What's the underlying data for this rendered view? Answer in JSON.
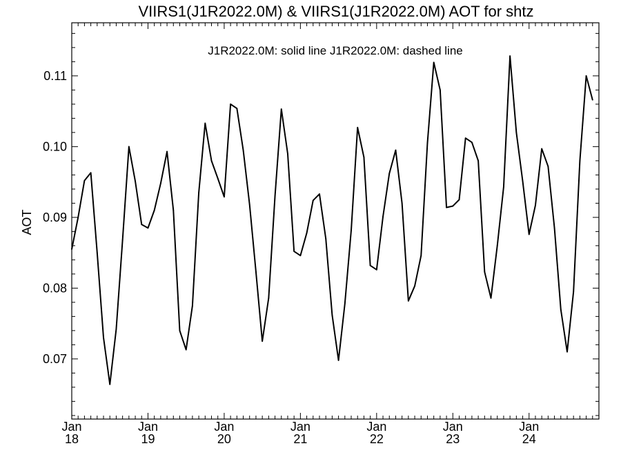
{
  "chart_data": {
    "type": "line",
    "title": "VIIRS1(J1R2022.0M) & VIIRS1(J1R2022.0M)  AOT for shtz",
    "annotation": "J1R2022.0M: solid line   J1R2022.0M: dashed line",
    "ylabel": "AOT",
    "xlabel": "",
    "ylim": [
      0.0615,
      0.1175
    ],
    "yticks": [
      0.07,
      0.08,
      0.09,
      0.1,
      0.11
    ],
    "ytick_labels": [
      "0.07",
      "0.08",
      "0.09",
      "0.10",
      "0.11"
    ],
    "xlim": [
      "2018-01",
      "2024-12"
    ],
    "xticks": [
      {
        "month": "Jan",
        "year": "18",
        "date": "2018-01"
      },
      {
        "month": "Jan",
        "year": "19",
        "date": "2019-01"
      },
      {
        "month": "Jan",
        "year": "20",
        "date": "2020-01"
      },
      {
        "month": "Jan",
        "year": "21",
        "date": "2021-01"
      },
      {
        "month": "Jan",
        "year": "22",
        "date": "2022-01"
      },
      {
        "month": "Jan",
        "year": "23",
        "date": "2023-01"
      },
      {
        "month": "Jan",
        "year": "24",
        "date": "2024-01"
      }
    ],
    "grid": false,
    "series": [
      {
        "style": "solid",
        "points": [
          [
            "2018-01",
            0.0855
          ],
          [
            "2018-02",
            0.09
          ],
          [
            "2018-03",
            0.0952
          ],
          [
            "2018-04",
            0.0963
          ],
          [
            "2018-05",
            0.085
          ],
          [
            "2018-06",
            0.073
          ],
          [
            "2018-07",
            0.0664
          ],
          [
            "2018-08",
            0.0742
          ],
          [
            "2018-09",
            0.0868
          ],
          [
            "2018-10",
            0.1
          ],
          [
            "2018-11",
            0.0951
          ],
          [
            "2018-12",
            0.089
          ],
          [
            "2019-01",
            0.0885
          ],
          [
            "2019-02",
            0.091
          ],
          [
            "2019-03",
            0.0948
          ],
          [
            "2019-04",
            0.0993
          ],
          [
            "2019-05",
            0.091
          ],
          [
            "2019-06",
            0.074
          ],
          [
            "2019-07",
            0.0713
          ],
          [
            "2019-08",
            0.0775
          ],
          [
            "2019-09",
            0.0935
          ],
          [
            "2019-10",
            0.1033
          ],
          [
            "2019-11",
            0.098
          ],
          [
            "2019-12",
            0.0955
          ],
          [
            "2020-01",
            0.0929
          ],
          [
            "2020-02",
            0.106
          ],
          [
            "2020-03",
            0.1054
          ],
          [
            "2020-04",
            0.0995
          ],
          [
            "2020-05",
            0.0918
          ],
          [
            "2020-06",
            0.0823
          ],
          [
            "2020-07",
            0.0725
          ],
          [
            "2020-08",
            0.0786
          ],
          [
            "2020-09",
            0.093
          ],
          [
            "2020-10",
            0.1053
          ],
          [
            "2020-11",
            0.099
          ],
          [
            "2020-12",
            0.0852
          ],
          [
            "2021-01",
            0.0846
          ],
          [
            "2021-02",
            0.0878
          ],
          [
            "2021-03",
            0.0924
          ],
          [
            "2021-04",
            0.0933
          ],
          [
            "2021-05",
            0.087
          ],
          [
            "2021-06",
            0.0762
          ],
          [
            "2021-07",
            0.0698
          ],
          [
            "2021-08",
            0.0778
          ],
          [
            "2021-09",
            0.0882
          ],
          [
            "2021-10",
            0.1027
          ],
          [
            "2021-11",
            0.0985
          ],
          [
            "2021-12",
            0.0832
          ],
          [
            "2022-01",
            0.0826
          ],
          [
            "2022-02",
            0.0901
          ],
          [
            "2022-03",
            0.0962
          ],
          [
            "2022-04",
            0.0995
          ],
          [
            "2022-05",
            0.092
          ],
          [
            "2022-06",
            0.0782
          ],
          [
            "2022-07",
            0.0803
          ],
          [
            "2022-08",
            0.0846
          ],
          [
            "2022-09",
            0.1005
          ],
          [
            "2022-10",
            0.1119
          ],
          [
            "2022-11",
            0.108
          ],
          [
            "2022-12",
            0.0914
          ],
          [
            "2023-01",
            0.0916
          ],
          [
            "2023-02",
            0.0925
          ],
          [
            "2023-03",
            0.1012
          ],
          [
            "2023-04",
            0.1006
          ],
          [
            "2023-05",
            0.098
          ],
          [
            "2023-06",
            0.0823
          ],
          [
            "2023-07",
            0.0786
          ],
          [
            "2023-08",
            0.086
          ],
          [
            "2023-09",
            0.0943
          ],
          [
            "2023-10",
            0.1128
          ],
          [
            "2023-11",
            0.102
          ],
          [
            "2023-12",
            0.0951
          ],
          [
            "2024-01",
            0.0876
          ],
          [
            "2024-02",
            0.0917
          ],
          [
            "2024-03",
            0.0997
          ],
          [
            "2024-04",
            0.0972
          ],
          [
            "2024-05",
            0.0885
          ],
          [
            "2024-06",
            0.077
          ],
          [
            "2024-07",
            0.071
          ],
          [
            "2024-08",
            0.0795
          ],
          [
            "2024-09",
            0.098
          ],
          [
            "2024-10",
            0.11
          ],
          [
            "2024-11",
            0.1066
          ]
        ]
      }
    ]
  }
}
